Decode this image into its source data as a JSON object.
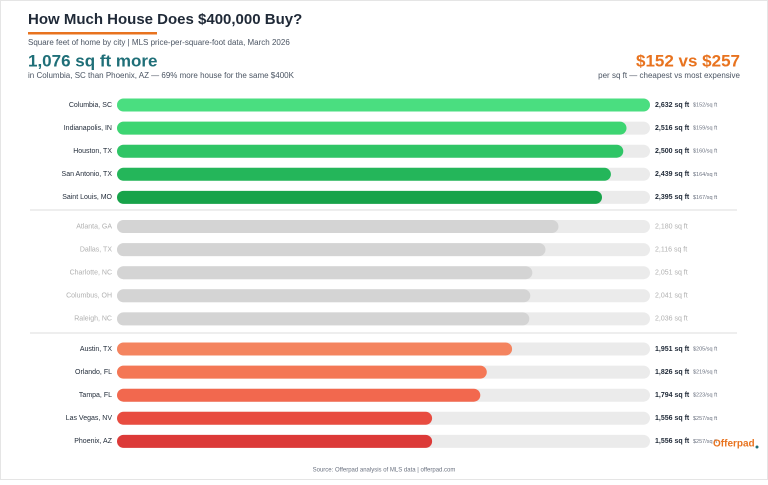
{
  "chart_data": {
    "type": "bar",
    "orientation": "horizontal",
    "title": "How Much House Does $400,000 Buy?",
    "subtitle": "Square feet of home by city | MLS price-per-square-foot data, March 2026",
    "callout_left": "1,076 sq ft more",
    "callout_left_note": "in Columbia, SC than Phoenix, AZ  —  69% more house for the same $400K",
    "callout_right": "$152 vs $257",
    "callout_right_note": "per sq ft  —  cheapest vs most expensive",
    "source": "Source: Offerpad analysis of MLS data  |  offerpad.com",
    "logo": "Offerpad",
    "categories": [
      "Columbia, SC",
      "Indianapolis, IN",
      "Houston, TX",
      "San Antonio, TX",
      "Saint Louis, MO",
      "Atlanta, GA",
      "Dallas, TX",
      "Charlotte, NC",
      "Columbus, OH",
      "Raleigh, NC",
      "Austin, TX",
      "Orlando, FL",
      "Tampa, FL",
      "Las Vegas, NV",
      "Phoenix, AZ"
    ],
    "values": [
      2632,
      2516,
      2500,
      2439,
      2395,
      2180,
      2116,
      2051,
      2041,
      2036,
      1951,
      1826,
      1794,
      1556,
      1556
    ],
    "value_labels": [
      "2,632 sq ft",
      "2,516 sq ft",
      "2,500 sq ft",
      "2,439 sq ft",
      "2,395 sq ft",
      "2,180 sq ft",
      "2,116 sq ft",
      "2,051 sq ft",
      "2,041 sq ft",
      "2,036 sq ft",
      "1,951 sq ft",
      "1,826 sq ft",
      "1,794 sq ft",
      "1,556 sq ft",
      "1,556 sq ft"
    ],
    "price_labels": [
      "$152/sq ft",
      "$159/sq ft",
      "$160/sq ft",
      "$164/sq ft",
      "$167/sq ft",
      null,
      null,
      null,
      null,
      null,
      "$205/sq ft",
      "$219/sq ft",
      "$223/sq ft",
      "$257/sq ft",
      "$257/sq ft"
    ],
    "colors": [
      "#4ade80",
      "#3dd572",
      "#2fc566",
      "#24b65a",
      "#17a34a",
      "#d4d4d4",
      "#d4d4d4",
      "#d4d4d4",
      "#d4d4d4",
      "#d4d4d4",
      "#f4845f",
      "#f47755",
      "#f2684e",
      "#e84c40",
      "#dc3a38"
    ],
    "label_colors": [
      "#1f2937",
      "#1f2937",
      "#1f2937",
      "#1f2937",
      "#1f2937",
      "#b0b0b0",
      "#b0b0b0",
      "#b0b0b0",
      "#b0b0b0",
      "#b0b0b0",
      "#1f2937",
      "#1f2937",
      "#1f2937",
      "#1f2937",
      "#1f2937"
    ],
    "track_color": "#ebebeb",
    "xlim": [
      0,
      2632
    ]
  }
}
